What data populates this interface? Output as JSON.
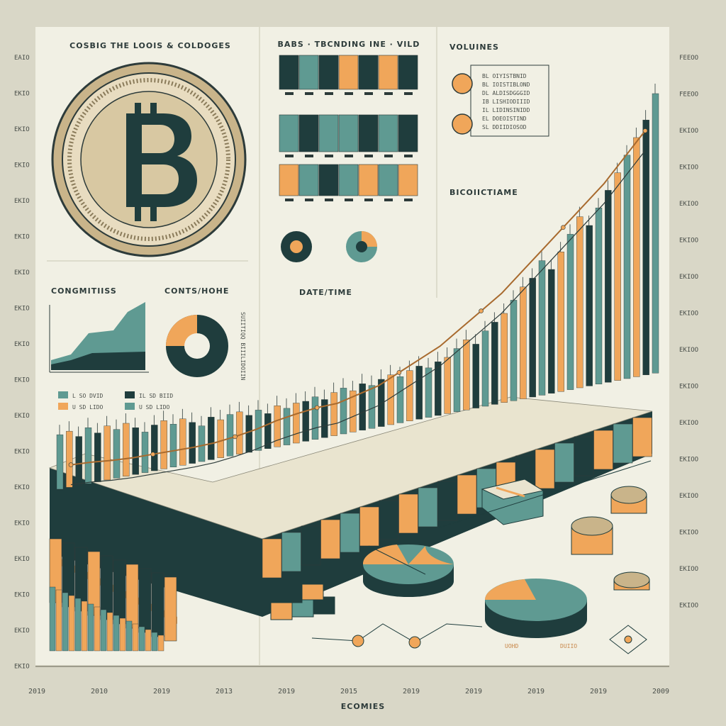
{
  "colors": {
    "paper": "#f1f0e4",
    "frame": "#d9d7c7",
    "dark_teal": "#1f3d3d",
    "teal": "#5f9a92",
    "orange": "#f0a65a",
    "ink": "#2d3b3a",
    "line_brown": "#a86a2e"
  },
  "panels": {
    "coin_title": "COSBIG THE LOOIS & COLDOGES",
    "bars_title": "BABS · TBCNDING INE · VILD",
    "volumes_title": "VOLUINES",
    "compositions_left": "CONGMITIISS",
    "compositions_right": "CONTS/HOHE",
    "datetime": "DATE/TIME",
    "bitcoin_side": "BICOIICTIAME",
    "rotated_label": "SUIITIQQ BIIILIDOIIN",
    "bottom_caption": "ECOMIES"
  },
  "legend_small": {
    "left": [
      "L SO DVID",
      "U SD LIDO"
    ],
    "right": [
      "IL SD BIID",
      "U SD LIDO"
    ]
  },
  "volumes_list": [
    "BL OIYISTBNID",
    "BL IOISTIBLOND",
    "DL ALDISDGGGID",
    "IB LISHIODIIID",
    "IL LIDINSINIDD",
    "EL DOEOISTIND",
    "SL DDIIDIOSOD"
  ],
  "pie_labels": [
    "UOHD",
    "DUIIO"
  ],
  "chart_data": [
    {
      "type": "line",
      "title": "",
      "y_axis_left": [
        "EAIO",
        "EKIO",
        "EKIO",
        "EKIO",
        "EKIO",
        "EKIO",
        "EKIO",
        "EKIO",
        "EKIO",
        "EKIO",
        "EKIO",
        "EKIO",
        "EKIO",
        "EKIO",
        "EKIO",
        "EKIO",
        "EKIO",
        "EKIO"
      ],
      "y_axis_right": [
        "FEEOO",
        "FEEOO",
        "EKIOO",
        "EKIOO",
        "EKIOO",
        "EKIOO",
        "EKIOO",
        "EKIOO",
        "EKIOO",
        "EKIOO",
        "EKIOO",
        "EKIOO",
        "EKIOO",
        "EKIOO",
        "EKIOO",
        "EKIOO"
      ],
      "x_ticks": [
        "2019",
        "2010",
        "2019",
        "2013",
        "2019",
        "2015",
        "2019",
        "2019",
        "2019",
        "2019",
        "2009"
      ],
      "candles": [
        62,
        66,
        60,
        70,
        64,
        72,
        68,
        75,
        70,
        65,
        73,
        78,
        74,
        80,
        76,
        72,
        82,
        79,
        85,
        88,
        84,
        90,
        86,
        95,
        92,
        98,
        100,
        105,
        102,
        110,
        115,
        112,
        120,
        118,
        125,
        130,
        128,
        135,
        140,
        138,
        145,
        150,
        160,
        170,
        165,
        180,
        190,
        200,
        215,
        230,
        240,
        260,
        250,
        270,
        290,
        310,
        300,
        320,
        340,
        360,
        380,
        400,
        420,
        450
      ],
      "trend": [
        60,
        63,
        65,
        68,
        72,
        76,
        80,
        85,
        92,
        100,
        110,
        118,
        125,
        130,
        140,
        150,
        165,
        180,
        195,
        215,
        235,
        255,
        280,
        305,
        330,
        355,
        380,
        410,
        440
      ],
      "ylim": [
        0,
        500
      ]
    }
  ]
}
